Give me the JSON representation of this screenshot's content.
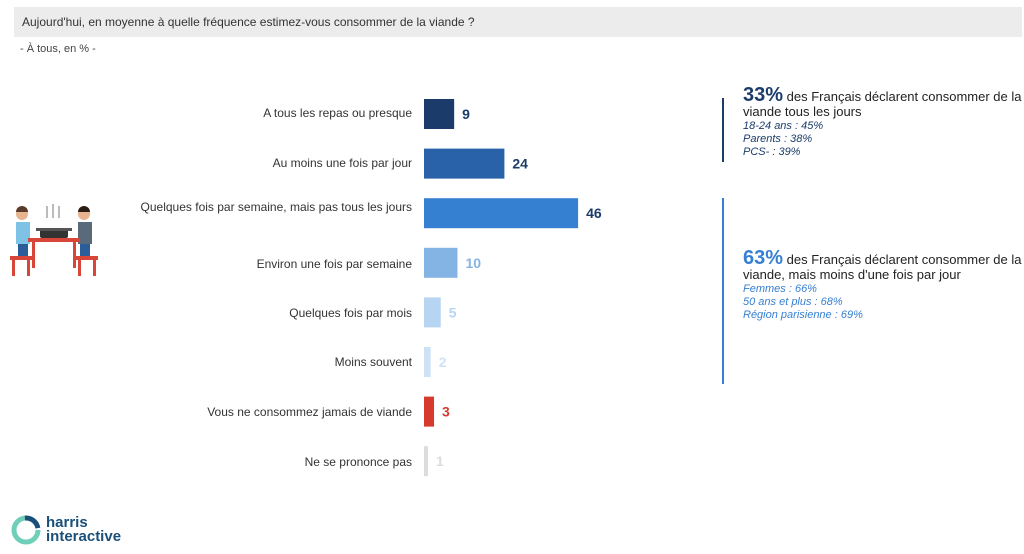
{
  "question": "Aujourd'hui, en moyenne à quelle fréquence estimez-vous consommer de la viande ?",
  "base": "- À tous, en % -",
  "chart_data": {
    "type": "bar",
    "orientation": "horizontal",
    "categories": [
      "A tous les repas ou presque",
      "Au moins une fois par jour",
      "Quelques fois par semaine, mais pas tous les jours",
      "Environ une fois par semaine",
      "Quelques fois par mois",
      "Moins souvent",
      "Vous ne consommez jamais de viande",
      "Ne se prononce pas"
    ],
    "values": [
      9,
      24,
      46,
      10,
      5,
      2,
      3,
      1
    ],
    "colors": [
      "#1b3c6b",
      "#2a62a9",
      "#3680d2",
      "#84b4e4",
      "#b7d5f2",
      "#cfe2f5",
      "#d63a2f",
      "#dcdcdc"
    ],
    "label_colors": [
      "#1b3c6b",
      "#1b3c6b",
      "#1b3c6b",
      "#84b4e4",
      "#b7d5f2",
      "#cfe2f5",
      "#d63a2f",
      "#dcdcdc"
    ],
    "unit": "%"
  },
  "callouts": [
    {
      "pct": "33%",
      "text": " des Français déclarent consommer de la viande tous les jours",
      "details": [
        "18-24 ans : 45%",
        "Parents : 38%",
        "PCS- : 39%"
      ],
      "color": "#1b3c6b"
    },
    {
      "pct": "63%",
      "text": " des Français déclarent consommer de la viande, mais moins d'une fois par jour",
      "details": [
        "Femmes : 66%",
        "50 ans et plus : 68%",
        "Région parisienne : 69%"
      ],
      "color": "#3680d2"
    }
  ],
  "logo": {
    "line1": "harris",
    "line2": "interactive"
  }
}
